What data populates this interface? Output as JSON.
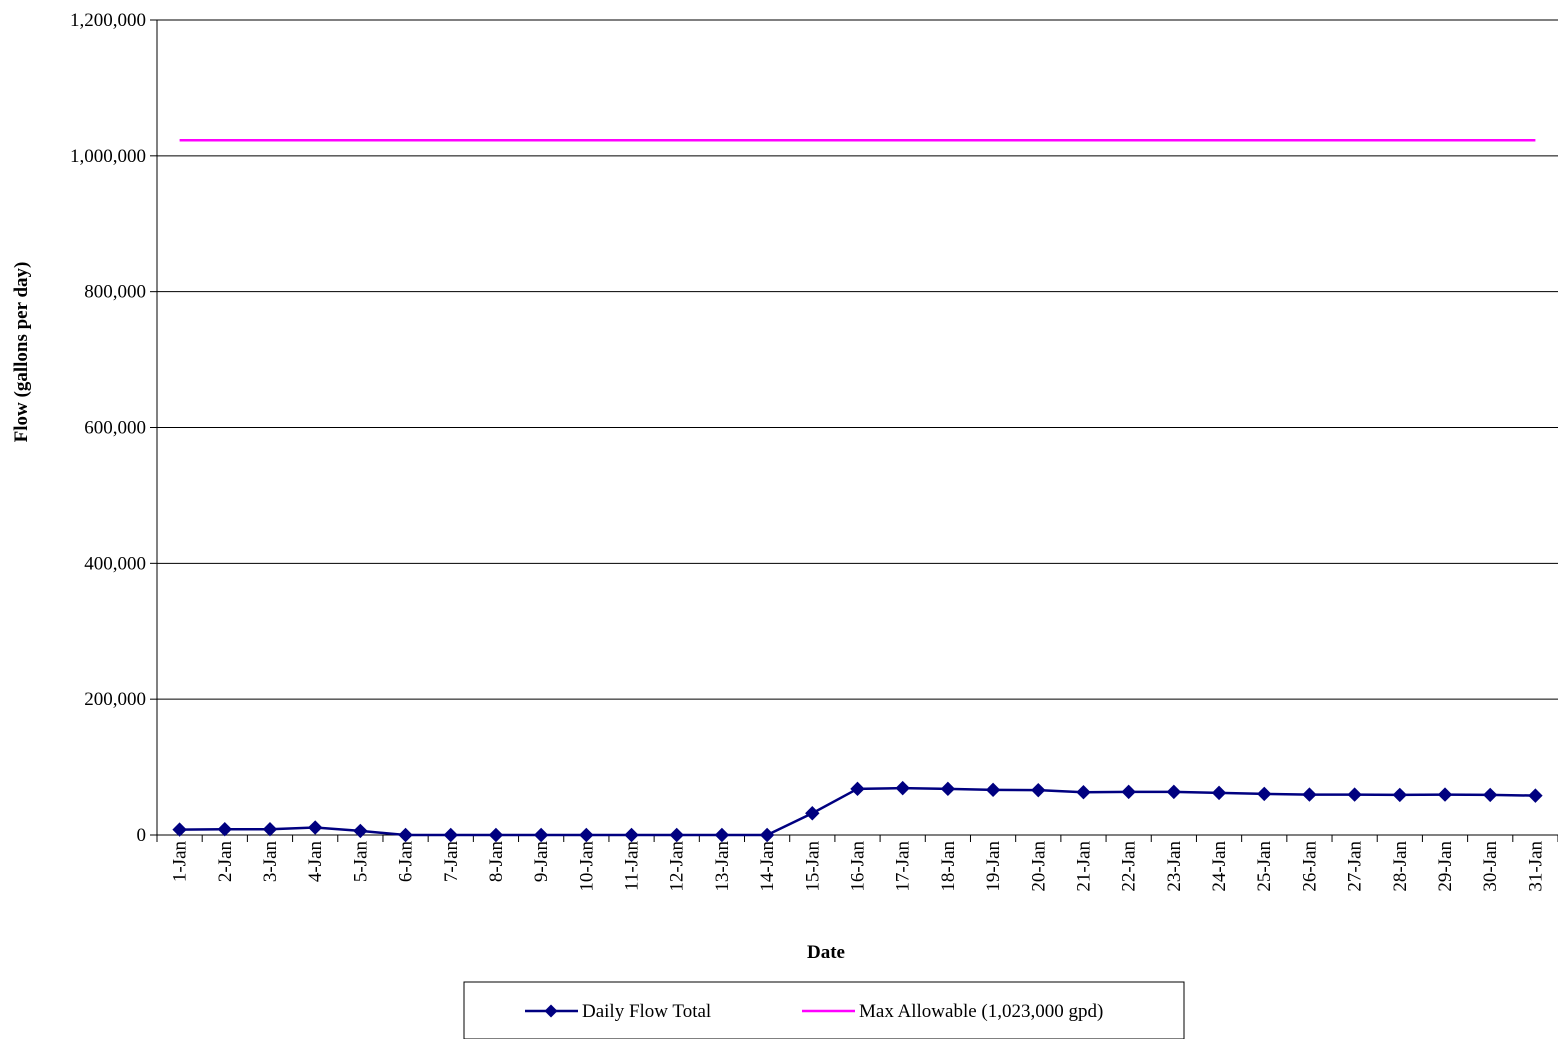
{
  "chart_data": {
    "type": "line",
    "title": "",
    "xlabel": "Date",
    "ylabel": "Flow (gallons per day)",
    "ylim": [
      0,
      1200000
    ],
    "yticks": [
      0,
      200000,
      400000,
      600000,
      800000,
      1000000,
      1200000
    ],
    "ytick_labels": [
      "0",
      "200,000",
      "400,000",
      "600,000",
      "800,000",
      "1,000,000",
      "1,200,000"
    ],
    "grid": "horizontal",
    "legend_position": "bottom",
    "categories": [
      "1-Jan",
      "2-Jan",
      "3-Jan",
      "4-Jan",
      "5-Jan",
      "6-Jan",
      "7-Jan",
      "8-Jan",
      "9-Jan",
      "10-Jan",
      "11-Jan",
      "12-Jan",
      "13-Jan",
      "14-Jan",
      "15-Jan",
      "16-Jan",
      "17-Jan",
      "18-Jan",
      "19-Jan",
      "20-Jan",
      "21-Jan",
      "22-Jan",
      "23-Jan",
      "24-Jan",
      "25-Jan",
      "26-Jan",
      "27-Jan",
      "28-Jan",
      "29-Jan",
      "30-Jan",
      "31-Jan"
    ],
    "series": [
      {
        "name": "Daily Flow Total",
        "color": "#000080",
        "marker": "diamond",
        "values": [
          8000,
          8500,
          8500,
          11000,
          6000,
          0,
          0,
          0,
          0,
          0,
          0,
          0,
          0,
          0,
          32000,
          68000,
          69000,
          68000,
          66500,
          66000,
          63000,
          63500,
          63500,
          62000,
          60500,
          59500,
          59500,
          59000,
          59500,
          59000,
          58000
        ]
      },
      {
        "name": "Max Allowable (1,023,000 gpd)",
        "color": "#FF00FF",
        "marker": "none",
        "values": [
          1023000,
          1023000,
          1023000,
          1023000,
          1023000,
          1023000,
          1023000,
          1023000,
          1023000,
          1023000,
          1023000,
          1023000,
          1023000,
          1023000,
          1023000,
          1023000,
          1023000,
          1023000,
          1023000,
          1023000,
          1023000,
          1023000,
          1023000,
          1023000,
          1023000,
          1023000,
          1023000,
          1023000,
          1023000,
          1023000,
          1023000
        ]
      }
    ]
  }
}
